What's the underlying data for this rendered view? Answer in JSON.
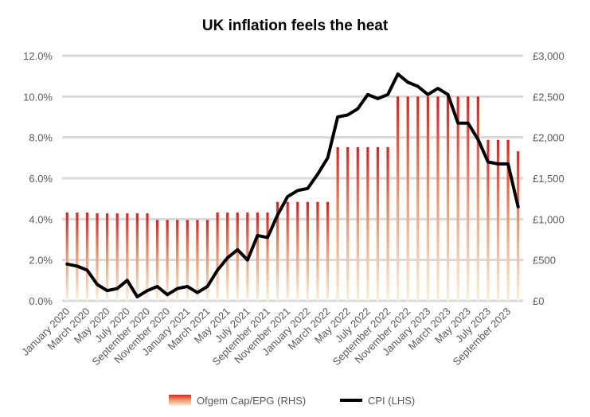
{
  "chart_data": {
    "type": "bar+line",
    "title": "UK inflation feels the heat",
    "x_tick_labels": [
      "January 2020",
      "March 2020",
      "May 2020",
      "July 2020",
      "September 2020",
      "November 2020",
      "January 2021",
      "March 2021",
      "May 2021",
      "July 2021",
      "September 2021",
      "November 2021",
      "January 2022",
      "March 2022",
      "May 2022",
      "July 2022",
      "September 2022",
      "November 2022",
      "January 2023",
      "March 2023",
      "May 2023",
      "July 2023",
      "September 2023"
    ],
    "months": 46,
    "left_axis": {
      "min": 0,
      "max": 12,
      "step": 2,
      "tick_labels": [
        "0.0%",
        "2.0%",
        "4.0%",
        "6.0%",
        "8.0%",
        "10.0%",
        "12.0%"
      ]
    },
    "right_axis": {
      "min": 0,
      "max": 3000,
      "step": 500,
      "tick_labels": [
        "£0",
        "£500",
        "£1,000",
        "£1,500",
        "£2,000",
        "£2,500",
        "£3,000"
      ]
    },
    "grid": true,
    "legend_position": "bottom",
    "series": [
      {
        "name": "Ofgem Cap/EPG (RHS)",
        "kind": "bar",
        "axis": "right",
        "values": [
          1080,
          1080,
          1080,
          1070,
          1070,
          1070,
          1070,
          1070,
          1070,
          990,
          990,
          990,
          990,
          990,
          990,
          1080,
          1080,
          1080,
          1080,
          1080,
          1080,
          1210,
          1210,
          1210,
          1210,
          1210,
          1210,
          1880,
          1880,
          1880,
          1880,
          1880,
          1880,
          2500,
          2500,
          2500,
          2500,
          2500,
          2500,
          2500,
          2500,
          2500,
          1970,
          1970,
          1970,
          1830
        ]
      },
      {
        "name": "CPI (LHS)",
        "kind": "line",
        "axis": "left",
        "values": [
          1.8,
          1.7,
          1.5,
          0.8,
          0.5,
          0.6,
          1.0,
          0.2,
          0.5,
          0.7,
          0.3,
          0.6,
          0.7,
          0.4,
          0.7,
          1.5,
          2.1,
          2.5,
          2.0,
          3.2,
          3.1,
          4.2,
          5.1,
          5.4,
          5.5,
          6.2,
          7.0,
          9.0,
          9.1,
          9.4,
          10.1,
          9.9,
          10.1,
          11.1,
          10.7,
          10.5,
          10.1,
          10.4,
          10.1,
          8.7,
          8.7,
          7.9,
          6.8,
          6.7,
          6.7,
          4.6
        ]
      }
    ],
    "colors": {
      "cpi_line": "#000000",
      "bar_top": "#e0201b",
      "bar_mid": "#f29a6f",
      "bar_bottom": "#faf0dc",
      "grid": "#d9d9d9",
      "tick_text": "#595959"
    }
  }
}
